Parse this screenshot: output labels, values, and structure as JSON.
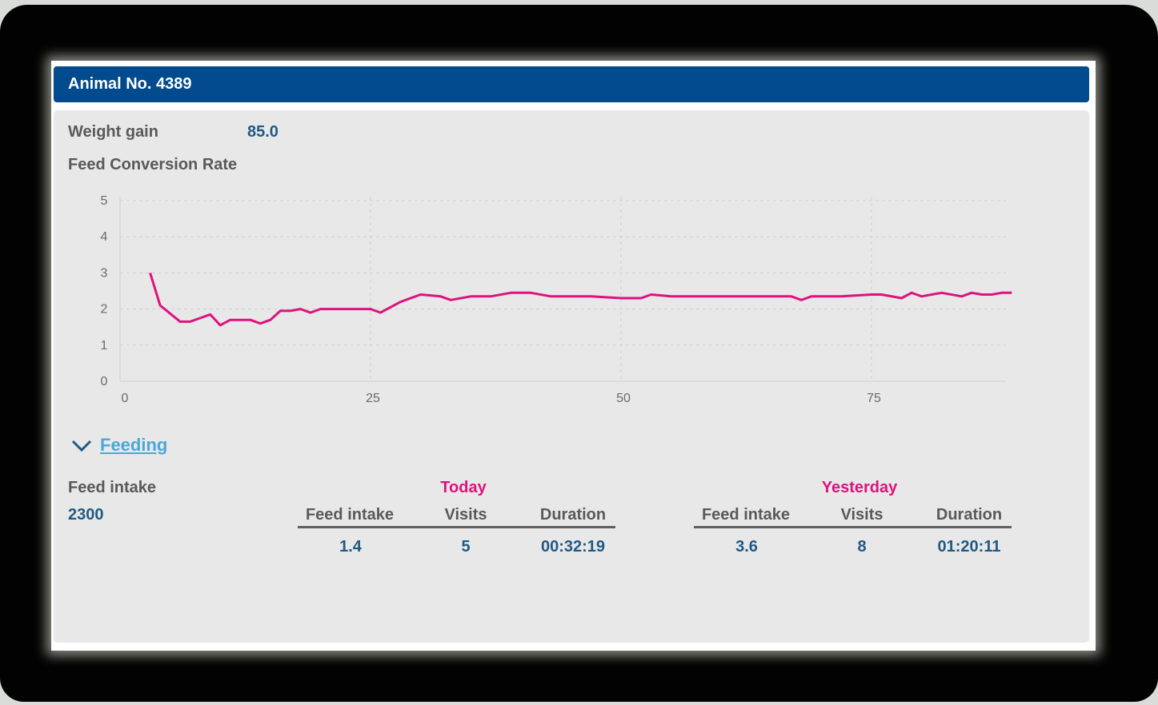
{
  "header": {
    "title": "Animal No. 4389"
  },
  "summary": {
    "weight_gain_label": "Weight gain",
    "weight_gain_value": "85.0",
    "fcr_label": "Feed Conversion Rate"
  },
  "chart_data": {
    "type": "line",
    "title": "",
    "xlabel": "",
    "ylabel": "",
    "xlim": [
      0,
      89
    ],
    "ylim": [
      0,
      5
    ],
    "x_ticks": [
      "0",
      "25",
      "50",
      "75"
    ],
    "x_tick_values": [
      0,
      25,
      50,
      75
    ],
    "y_ticks": [
      "0",
      "1",
      "2",
      "3",
      "4",
      "5"
    ],
    "y_tick_values": [
      0,
      1,
      2,
      3,
      4,
      5
    ],
    "grid": true,
    "color": "#e0117f",
    "series": [
      {
        "x": [
          3,
          4,
          6,
          7,
          9,
          10,
          11,
          13,
          14,
          15,
          16,
          17,
          18,
          19,
          20,
          21,
          22,
          25,
          26,
          28,
          30,
          32,
          33,
          35,
          36,
          37,
          39,
          40,
          41,
          43,
          45,
          47,
          50,
          52,
          53,
          55,
          57,
          60,
          63,
          65,
          67,
          68,
          69,
          70,
          72,
          75,
          76,
          78,
          79,
          80,
          81,
          82,
          84,
          85,
          86,
          87,
          88,
          89
        ],
        "y": [
          3.0,
          2.1,
          1.65,
          1.65,
          1.85,
          1.55,
          1.7,
          1.7,
          1.6,
          1.7,
          1.95,
          1.95,
          2.0,
          1.9,
          2.0,
          2.0,
          2.0,
          2.0,
          1.9,
          2.2,
          2.4,
          2.35,
          2.25,
          2.35,
          2.35,
          2.35,
          2.45,
          2.45,
          2.45,
          2.35,
          2.35,
          2.35,
          2.3,
          2.3,
          2.4,
          2.35,
          2.35,
          2.35,
          2.35,
          2.35,
          2.35,
          2.25,
          2.35,
          2.35,
          2.35,
          2.4,
          2.4,
          2.3,
          2.45,
          2.35,
          2.4,
          2.45,
          2.35,
          2.45,
          2.4,
          2.4,
          2.45,
          2.45
        ]
      }
    ]
  },
  "feeding": {
    "section_label": "Feeding",
    "feed_intake_label": "Feed intake",
    "feed_intake_value": "2300",
    "today": {
      "title": "Today",
      "columns": [
        "Feed intake",
        "Visits",
        "Duration"
      ],
      "values": [
        "1.4",
        "5",
        "00:32:19"
      ]
    },
    "yesterday": {
      "title": "Yesterday",
      "columns": [
        "Feed intake",
        "Visits",
        "Duration"
      ],
      "values": [
        "3.6",
        "8",
        "01:20:11"
      ]
    }
  }
}
